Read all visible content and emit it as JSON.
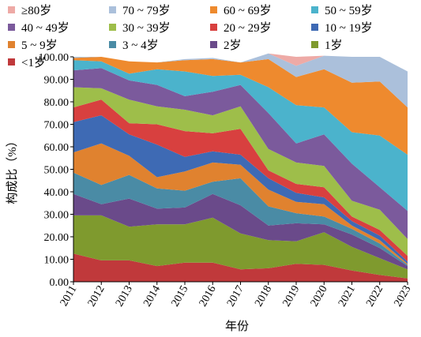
{
  "chart_data": {
    "type": "area",
    "stacked": true,
    "xlabel": "年份",
    "ylabel": "构成比（%）",
    "ylim": [
      0,
      100
    ],
    "yticks": [
      "0.00",
      "10.00",
      "20.00",
      "30.00",
      "40.00",
      "50.00",
      "60.00",
      "70.00",
      "80.00",
      "90.00",
      "100.00"
    ],
    "categories": [
      "2011",
      "2012",
      "2013",
      "2014",
      "2015",
      "2016",
      "2017",
      "2018",
      "2019",
      "2020",
      "2021",
      "2022",
      "2023"
    ],
    "legend_position": "top",
    "series": [
      {
        "name": "<1岁",
        "color": "#c0393b",
        "values": [
          12.5,
          9.5,
          9.5,
          7.0,
          8.5,
          8.5,
          5.5,
          6.0,
          8.0,
          7.5,
          5.0,
          3.0,
          1.5
        ]
      },
      {
        "name": "1岁",
        "color": "#7f9a2e",
        "values": [
          17.0,
          20.0,
          15.0,
          18.5,
          17.0,
          20.0,
          16.0,
          12.5,
          10.0,
          14.5,
          10.5,
          7.5,
          4.0
        ]
      },
      {
        "name": "2岁",
        "color": "#6a4a8a",
        "values": [
          9.5,
          5.0,
          12.5,
          7.0,
          7.5,
          10.5,
          12.5,
          6.5,
          8.0,
          3.5,
          5.5,
          4.5,
          1.5
        ]
      },
      {
        "name": "3 ~ 4岁",
        "color": "#4a8ba5",
        "values": [
          9.5,
          8.5,
          10.5,
          9.0,
          7.5,
          5.5,
          12.0,
          8.5,
          4.5,
          3.5,
          2.5,
          2.0,
          0.5
        ]
      },
      {
        "name": "5 ~ 9岁",
        "color": "#e0822f",
        "values": [
          9.0,
          18.5,
          8.5,
          5.0,
          8.5,
          8.5,
          6.0,
          7.5,
          5.0,
          5.5,
          1.5,
          1.5,
          0.5
        ]
      },
      {
        "name": "10 ~ 19岁",
        "color": "#3e6ab4",
        "values": [
          13.5,
          12.5,
          9.5,
          14.5,
          6.5,
          5.0,
          4.5,
          5.0,
          4.0,
          3.0,
          2.0,
          2.0,
          1.0
        ]
      },
      {
        "name": "20 ~ 29岁",
        "color": "#d8403f",
        "values": [
          6.5,
          7.0,
          5.0,
          9.0,
          11.5,
          8.0,
          11.5,
          3.5,
          4.0,
          4.5,
          2.0,
          2.5,
          2.5
        ]
      },
      {
        "name": "30 ~ 39岁",
        "color": "#9ebe4a",
        "values": [
          9.0,
          5.0,
          10.5,
          8.0,
          9.5,
          8.0,
          10.0,
          9.5,
          9.5,
          9.5,
          7.0,
          9.0,
          7.5
        ]
      },
      {
        "name": "40 ~ 49岁",
        "color": "#7b5a9c",
        "values": [
          7.5,
          9.0,
          8.5,
          9.5,
          6.0,
          10.5,
          9.5,
          16.0,
          8.5,
          14.0,
          16.5,
          10.0,
          12.5
        ]
      },
      {
        "name": "50 ~ 59岁",
        "color": "#4bb3cc",
        "values": [
          4.5,
          3.0,
          3.0,
          7.0,
          11.0,
          7.0,
          4.5,
          11.5,
          17.0,
          12.0,
          14.0,
          23.0,
          25.0
        ]
      },
      {
        "name": "60 ~ 69岁",
        "color": "#ee8a2e",
        "values": [
          1.0,
          2.0,
          5.5,
          3.0,
          5.0,
          7.5,
          5.5,
          12.5,
          12.5,
          17.0,
          22.0,
          24.0,
          21.0
        ]
      },
      {
        "name": "70 ~ 79岁",
        "color": "#abc0db",
        "values": [
          0.5,
          0.0,
          0.0,
          0.0,
          0.5,
          0.5,
          0.0,
          2.5,
          5.0,
          6.0,
          11.5,
          11.0,
          16.0
        ]
      },
      {
        "name": "≥80岁",
        "color": "#eeaaa6",
        "values": [
          0.0,
          0.0,
          0.0,
          0.0,
          0.0,
          0.0,
          0.0,
          0.0,
          4.0,
          0.0,
          0.0,
          0.0,
          0.0
        ]
      }
    ]
  },
  "legend_order": [
    "≥80岁",
    "70 ~ 79岁",
    "60 ~ 69岁",
    "50 ~ 59岁",
    "40 ~ 49岁",
    "30 ~ 39岁",
    "20 ~ 29岁",
    "10 ~ 19岁",
    "5 ~ 9岁",
    "3 ~ 4岁",
    "2岁",
    "1岁",
    "<1岁"
  ]
}
